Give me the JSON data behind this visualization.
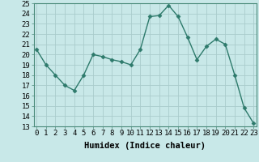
{
  "x": [
    0,
    1,
    2,
    3,
    4,
    5,
    6,
    7,
    8,
    9,
    10,
    11,
    12,
    13,
    14,
    15,
    16,
    17,
    18,
    19,
    20,
    21,
    22,
    23
  ],
  "y": [
    20.5,
    19.0,
    18.0,
    17.0,
    16.5,
    18.0,
    20.0,
    19.8,
    19.5,
    19.3,
    19.0,
    20.5,
    23.7,
    23.8,
    24.8,
    23.7,
    21.7,
    19.5,
    20.8,
    21.5,
    21.0,
    18.0,
    14.8,
    13.3
  ],
  "line_color": "#2d7a6b",
  "marker": "D",
  "markersize": 2.5,
  "linewidth": 1.0,
  "bg_color": "#c8e8e8",
  "grid_color": "#aacccc",
  "xlabel": "Humidex (Indice chaleur)",
  "tick_fontsize": 6.5,
  "xlabel_fontsize": 7.5,
  "ylim": [
    13,
    25
  ],
  "yticks": [
    13,
    14,
    15,
    16,
    17,
    18,
    19,
    20,
    21,
    22,
    23,
    24,
    25
  ],
  "xticks": [
    0,
    1,
    2,
    3,
    4,
    5,
    6,
    7,
    8,
    9,
    10,
    11,
    12,
    13,
    14,
    15,
    16,
    17,
    18,
    19,
    20,
    21,
    22,
    23
  ],
  "xlim": [
    -0.3,
    23.3
  ]
}
